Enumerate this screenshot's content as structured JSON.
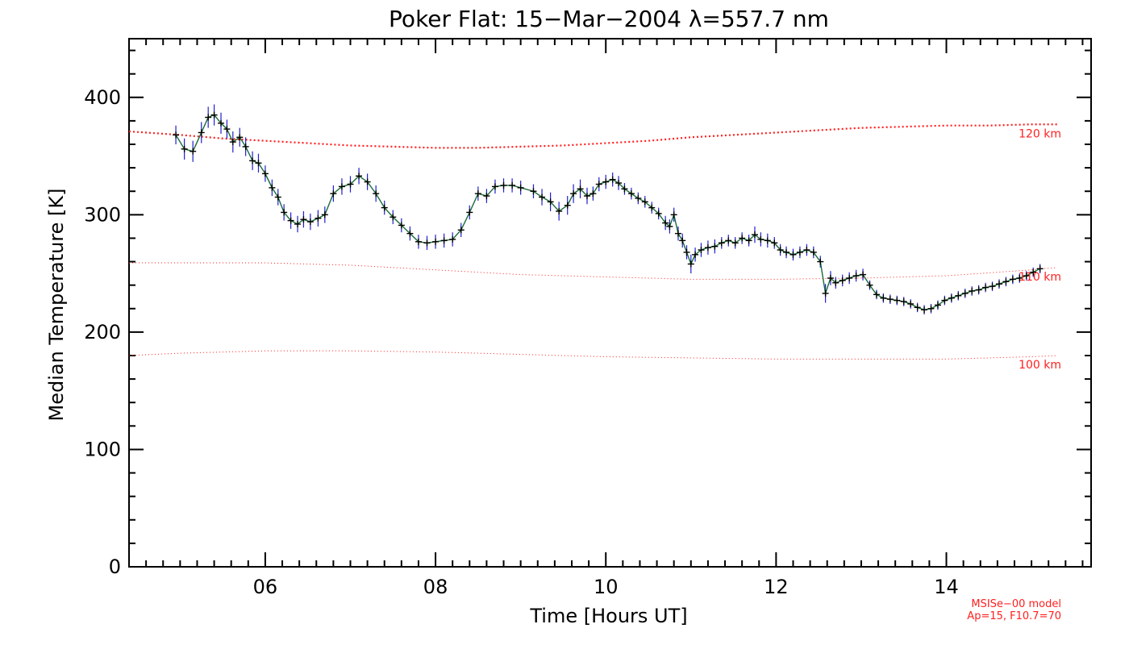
{
  "chart_data": {
    "type": "line",
    "title": "Poker Flat: 15−Mar−2004 λ=557.7 nm",
    "xlabel": "Time [Hours UT]",
    "ylabel": "Median Temperature [K]",
    "xlim": [
      4.4,
      15.7
    ],
    "ylim": [
      0,
      450
    ],
    "x_major_ticks": [
      6,
      8,
      10,
      12,
      14
    ],
    "x_tick_labels": [
      "06",
      "08",
      "10",
      "12",
      "14"
    ],
    "y_major_ticks": [
      0,
      100,
      200,
      300,
      400
    ],
    "y_tick_labels": [
      "0",
      "100",
      "200",
      "300",
      "400"
    ],
    "series": [
      {
        "name": "Median Temperature",
        "color": "#000000",
        "errorbar_color": "#2020d0",
        "points": [
          [
            4.95,
            368,
            8
          ],
          [
            5.05,
            356,
            9
          ],
          [
            5.15,
            354,
            9
          ],
          [
            5.25,
            370,
            9
          ],
          [
            5.33,
            383,
            9
          ],
          [
            5.4,
            385,
            9
          ],
          [
            5.48,
            378,
            9
          ],
          [
            5.55,
            373,
            8
          ],
          [
            5.62,
            362,
            9
          ],
          [
            5.7,
            366,
            8
          ],
          [
            5.77,
            358,
            8
          ],
          [
            5.85,
            346,
            8
          ],
          [
            5.92,
            344,
            8
          ],
          [
            6.0,
            335,
            7
          ],
          [
            6.08,
            323,
            7
          ],
          [
            6.15,
            315,
            7
          ],
          [
            6.22,
            302,
            7
          ],
          [
            6.3,
            295,
            7
          ],
          [
            6.38,
            292,
            7
          ],
          [
            6.45,
            296,
            7
          ],
          [
            6.53,
            294,
            7
          ],
          [
            6.62,
            297,
            7
          ],
          [
            6.7,
            300,
            7
          ],
          [
            6.8,
            318,
            7
          ],
          [
            6.9,
            324,
            7
          ],
          [
            7.0,
            326,
            7
          ],
          [
            7.1,
            333,
            7
          ],
          [
            7.2,
            328,
            7
          ],
          [
            7.3,
            318,
            7
          ],
          [
            7.4,
            306,
            6
          ],
          [
            7.5,
            298,
            6
          ],
          [
            7.6,
            291,
            6
          ],
          [
            7.7,
            284,
            6
          ],
          [
            7.8,
            277,
            6
          ],
          [
            7.9,
            276,
            6
          ],
          [
            8.0,
            277,
            6
          ],
          [
            8.1,
            278,
            6
          ],
          [
            8.2,
            279,
            6
          ],
          [
            8.3,
            287,
            6
          ],
          [
            8.4,
            302,
            6
          ],
          [
            8.5,
            318,
            6
          ],
          [
            8.6,
            316,
            6
          ],
          [
            8.7,
            324,
            6
          ],
          [
            8.8,
            325,
            6
          ],
          [
            8.9,
            325,
            6
          ],
          [
            9.0,
            323,
            6
          ],
          [
            9.15,
            320,
            6
          ],
          [
            9.25,
            315,
            7
          ],
          [
            9.35,
            311,
            8
          ],
          [
            9.45,
            303,
            8
          ],
          [
            9.55,
            308,
            8
          ],
          [
            9.62,
            318,
            8
          ],
          [
            9.7,
            322,
            8
          ],
          [
            9.78,
            316,
            7
          ],
          [
            9.85,
            318,
            6
          ],
          [
            9.92,
            326,
            6
          ],
          [
            10.0,
            328,
            6
          ],
          [
            10.08,
            330,
            6
          ],
          [
            10.15,
            327,
            6
          ],
          [
            10.22,
            322,
            5
          ],
          [
            10.3,
            318,
            5
          ],
          [
            10.38,
            314,
            5
          ],
          [
            10.46,
            311,
            5
          ],
          [
            10.54,
            306,
            5
          ],
          [
            10.62,
            301,
            5
          ],
          [
            10.7,
            293,
            6
          ],
          [
            10.75,
            290,
            6
          ],
          [
            10.8,
            300,
            6
          ],
          [
            10.85,
            284,
            6
          ],
          [
            10.9,
            278,
            6
          ],
          [
            10.95,
            268,
            6
          ],
          [
            11.0,
            258,
            8
          ],
          [
            11.05,
            266,
            6
          ],
          [
            11.12,
            270,
            6
          ],
          [
            11.2,
            272,
            6
          ],
          [
            11.28,
            273,
            6
          ],
          [
            11.36,
            276,
            5
          ],
          [
            11.44,
            278,
            5
          ],
          [
            11.52,
            276,
            5
          ],
          [
            11.6,
            280,
            5
          ],
          [
            11.68,
            278,
            5
          ],
          [
            11.75,
            283,
            7
          ],
          [
            11.82,
            279,
            6
          ],
          [
            11.9,
            278,
            6
          ],
          [
            11.98,
            276,
            5
          ],
          [
            12.05,
            270,
            5
          ],
          [
            12.12,
            268,
            5
          ],
          [
            12.2,
            266,
            5
          ],
          [
            12.28,
            268,
            5
          ],
          [
            12.36,
            270,
            5
          ],
          [
            12.44,
            268,
            5
          ],
          [
            12.52,
            260,
            5
          ],
          [
            12.58,
            233,
            8
          ],
          [
            12.64,
            246,
            6
          ],
          [
            12.7,
            242,
            5
          ],
          [
            12.78,
            244,
            5
          ],
          [
            12.86,
            246,
            5
          ],
          [
            12.94,
            248,
            5
          ],
          [
            13.02,
            249,
            5
          ],
          [
            13.1,
            240,
            4
          ],
          [
            13.18,
            232,
            4
          ],
          [
            13.26,
            229,
            4
          ],
          [
            13.34,
            228,
            4
          ],
          [
            13.42,
            227,
            4
          ],
          [
            13.5,
            226,
            4
          ],
          [
            13.58,
            224,
            4
          ],
          [
            13.66,
            221,
            4
          ],
          [
            13.74,
            219,
            4
          ],
          [
            13.82,
            220,
            4
          ],
          [
            13.9,
            223,
            4
          ],
          [
            13.98,
            227,
            4
          ],
          [
            14.06,
            229,
            4
          ],
          [
            14.14,
            231,
            4
          ],
          [
            14.22,
            233,
            4
          ],
          [
            14.3,
            235,
            4
          ],
          [
            14.38,
            236,
            4
          ],
          [
            14.46,
            238,
            4
          ],
          [
            14.54,
            239,
            4
          ],
          [
            14.62,
            241,
            4
          ],
          [
            14.7,
            243,
            4
          ],
          [
            14.78,
            245,
            4
          ],
          [
            14.86,
            246,
            4
          ],
          [
            14.94,
            248,
            4
          ],
          [
            15.02,
            251,
            4
          ],
          [
            15.1,
            254,
            4
          ]
        ]
      },
      {
        "name": "120 km",
        "label": "120 km",
        "style": "dotted-heavy",
        "color": "#ff2020",
        "x": [
          4.4,
          5.0,
          5.5,
          6.0,
          6.5,
          7.0,
          7.5,
          8.0,
          8.5,
          9.0,
          9.5,
          10.0,
          10.5,
          11.0,
          11.5,
          12.0,
          12.5,
          13.0,
          13.5,
          14.0,
          14.5,
          15.0,
          15.3
        ],
        "y": [
          371,
          368,
          365,
          363,
          361,
          359,
          358,
          357,
          357,
          358,
          359,
          361,
          363,
          366,
          368,
          370,
          372,
          374,
          375,
          376,
          376,
          377,
          377
        ]
      },
      {
        "name": "110 km",
        "label": "110 km",
        "style": "dotted-light",
        "color": "#ff2020",
        "x": [
          4.4,
          5.0,
          6.0,
          7.0,
          8.0,
          9.0,
          10.0,
          11.0,
          12.0,
          13.0,
          14.0,
          15.0,
          15.3
        ],
        "y": [
          259,
          259,
          259,
          257,
          253,
          249,
          247,
          245,
          245,
          246,
          248,
          253,
          255
        ]
      },
      {
        "name": "100 km",
        "label": "100 km",
        "style": "dotted-light",
        "color": "#ff2020",
        "x": [
          4.4,
          5.0,
          6.0,
          7.0,
          8.0,
          9.0,
          10.0,
          11.0,
          12.0,
          13.0,
          14.0,
          15.0,
          15.3
        ],
        "y": [
          180,
          182,
          184,
          184,
          183,
          181,
          179,
          178,
          177,
          177,
          177,
          179,
          180
        ]
      }
    ],
    "annotations": [
      "MSISe−00 model",
      "Ap=15, F10.7=70"
    ]
  },
  "colors": {
    "data_line": "#1a6b3a",
    "model": "#ff2020",
    "errorbar": "#2020d0",
    "axes": "#000000"
  }
}
